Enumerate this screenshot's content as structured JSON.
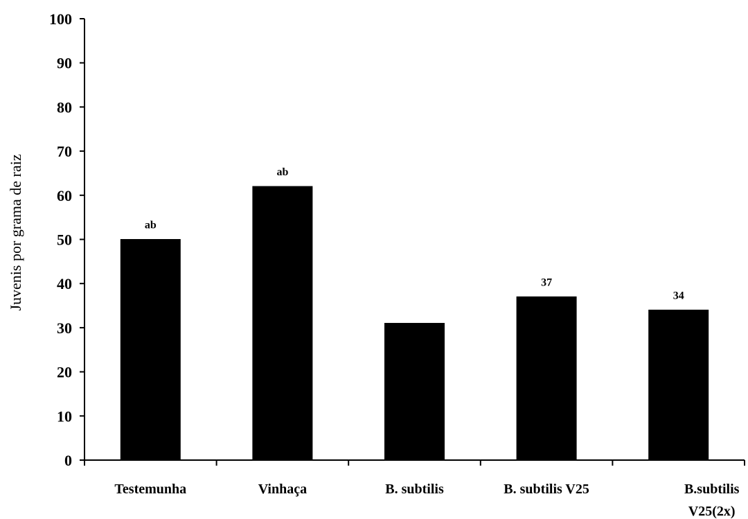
{
  "chart_data": {
    "type": "bar",
    "title": "",
    "xlabel": "",
    "ylabel": "Juvenis por grama de raiz",
    "ylim": [
      0,
      100
    ],
    "yticks": [
      0,
      10,
      20,
      30,
      40,
      50,
      60,
      70,
      80,
      90,
      100
    ],
    "grid": false,
    "legend": "none",
    "bar_color": "#000000",
    "categories": [
      [
        "Testemunha"
      ],
      [
        "Vinhaça"
      ],
      [
        "B. subtilis"
      ],
      [
        "B. subtilis V25"
      ],
      [
        "B.subtilis",
        "V25(2x)"
      ]
    ],
    "values": [
      50,
      62,
      31,
      37,
      34
    ],
    "bar_labels": [
      "ab",
      "ab",
      "",
      "37",
      "34"
    ]
  }
}
